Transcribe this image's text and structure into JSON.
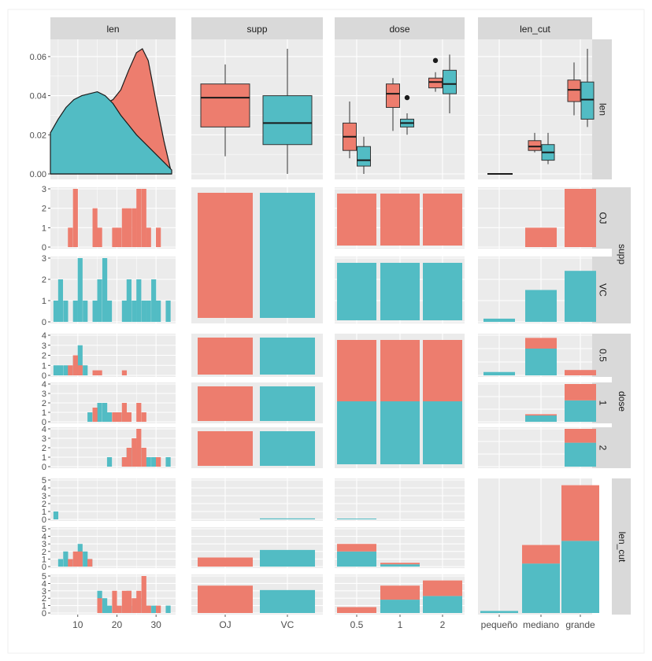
{
  "colors": {
    "oj": "#ED7D6E",
    "vc": "#52BCC4",
    "panel_bg": "#EBEBEB",
    "strip_bg": "#D9D9D9",
    "grid": "#FFFFFF",
    "tick_text": "#4D4D4D",
    "strip_text": "#1A1A1A",
    "outline": "#1A1A1A"
  },
  "chart_data": {
    "type": "pairs",
    "variables": [
      "len",
      "supp",
      "dose",
      "len_cut"
    ],
    "column_strips": [
      "len",
      "supp",
      "dose",
      "len_cut"
    ],
    "row_strips": [
      "len",
      "supp",
      "dose",
      "len_cut"
    ],
    "sub_strips": {
      "supp": [
        "OJ",
        "VC"
      ],
      "dose": [
        "0.5",
        "1",
        "2"
      ]
    },
    "axis_ticks": {
      "len_x": [
        "10",
        "20",
        "30"
      ],
      "supp_x": [
        "OJ",
        "VC"
      ],
      "dose_x": [
        "0.5",
        "1",
        "2"
      ],
      "len_cut_x": [
        "pequeño",
        "mediano",
        "grande"
      ],
      "density_y": [
        "0.00",
        "0.02",
        "0.04",
        "0.06"
      ],
      "count_y_small": [
        "0",
        "1",
        "2",
        "3"
      ],
      "count_y_dose": [
        "0",
        "1",
        "2",
        "3",
        "4"
      ],
      "count_y_len_cut": [
        "0",
        "1",
        "2",
        "3",
        "4",
        "5"
      ]
    },
    "len_range": [
      3,
      35
    ],
    "density": {
      "x": [
        3,
        5,
        7,
        9,
        11,
        13,
        15,
        17,
        19,
        21,
        23,
        25,
        26.5,
        28,
        30,
        32,
        34
      ],
      "OJ": [
        0.0,
        0.001,
        0.003,
        0.007,
        0.013,
        0.022,
        0.031,
        0.036,
        0.038,
        0.043,
        0.053,
        0.062,
        0.064,
        0.058,
        0.037,
        0.017,
        0.0
      ],
      "VC": [
        0.021,
        0.028,
        0.034,
        0.038,
        0.04,
        0.041,
        0.042,
        0.04,
        0.036,
        0.03,
        0.025,
        0.02,
        0.017,
        0.014,
        0.01,
        0.006,
        0.002
      ]
    },
    "len_by_supp_boxplot": {
      "ylim": [
        0,
        0.066
      ],
      "OJ": {
        "lower": 0.009,
        "q1": 0.024,
        "median": 0.039,
        "q3": 0.046,
        "upper": 0.056
      },
      "VC": {
        "lower": 0.0,
        "q1": 0.015,
        "median": 0.026,
        "q3": 0.04,
        "upper": 0.064
      }
    },
    "len_by_dose_boxplot": {
      "ylim": [
        0,
        0.066
      ],
      "groups": [
        "0.5",
        "1",
        "2"
      ],
      "OJ": [
        {
          "lower": 0.008,
          "q1": 0.012,
          "median": 0.019,
          "q3": 0.026,
          "upper": 0.037,
          "outliers": []
        },
        {
          "lower": 0.022,
          "q1": 0.034,
          "median": 0.041,
          "q3": 0.046,
          "upper": 0.049,
          "outliers": []
        },
        {
          "lower": 0.042,
          "q1": 0.044,
          "median": 0.047,
          "q3": 0.049,
          "upper": 0.052,
          "outliers": [
            0.058
          ]
        }
      ],
      "VC": [
        {
          "lower": 0.0,
          "q1": 0.004,
          "median": 0.007,
          "q3": 0.014,
          "upper": 0.019,
          "outliers": []
        },
        {
          "lower": 0.02,
          "q1": 0.024,
          "median": 0.026,
          "q3": 0.028,
          "upper": 0.031,
          "outliers": [
            0.039
          ]
        },
        {
          "lower": 0.031,
          "q1": 0.041,
          "median": 0.046,
          "q3": 0.053,
          "upper": 0.061,
          "outliers": []
        }
      ]
    },
    "len_by_len_cut_boxplot": {
      "ylim": [
        0,
        0.066
      ],
      "groups": [
        "pequeño",
        "mediano",
        "grande"
      ],
      "OJ": [
        {
          "lower": 0.0,
          "q1": 0.0,
          "median": 0.0,
          "q3": 0.0,
          "upper": 0.0
        },
        {
          "lower": 0.011,
          "q1": 0.012,
          "median": 0.014,
          "q3": 0.017,
          "upper": 0.021
        },
        {
          "lower": 0.03,
          "q1": 0.037,
          "median": 0.043,
          "q3": 0.048,
          "upper": 0.057
        }
      ],
      "VC": null,
      "VC_groups": [
        null,
        {
          "lower": 0.005,
          "q1": 0.007,
          "median": 0.011,
          "q3": 0.015,
          "upper": 0.021
        },
        {
          "lower": 0.024,
          "q1": 0.028,
          "median": 0.038,
          "q3": 0.047,
          "upper": 0.064
        }
      ]
    },
    "supp_by_supp_counts": {
      "OJ": 30,
      "VC": 30
    },
    "supp_by_dose_counts": {
      "OJ": [
        10,
        10,
        10
      ],
      "VC": [
        10,
        10,
        10
      ]
    },
    "dose_by_supp_counts": {
      "0.5": [
        10,
        10
      ],
      "1": [
        10,
        10
      ],
      "2": [
        10,
        10
      ]
    },
    "dose_by_dose_counts": {
      "0.5": [
        10,
        10
      ],
      "1": [
        10,
        10
      ],
      "2": [
        10,
        10
      ]
    },
    "len_cut_by_supp": {
      "ylim": [
        0,
        5
      ],
      "pequeño": {
        "OJ": 0,
        "VC": 0.12
      },
      "mediano": {
        "OJ": 1.2,
        "VC": 2.2
      },
      "grande": {
        "OJ": 3.7,
        "VC": 3.1
      }
    },
    "len_cut_by_dose": {
      "ylim": [
        0,
        5
      ],
      "0.5": {
        "OJ": [
          1,
          0
        ],
        "VC": [
          2.6,
          0
        ]
      },
      "1": {
        "OJ": [
          0.25,
          0
        ],
        "VC": [
          0.35,
          0
        ]
      },
      "2": {
        "OJ": [
          2.2,
          0
        ],
        "VC": [
          2.3,
          0
        ]
      },
      "stacked": {
        "0.5": {
          "OJ": 1.3,
          "VC": 2.6
        },
        "1": {
          "OJ": 2.1,
          "VC": 2.0
        },
        "2": {
          "OJ": 2.5,
          "VC": 2.5
        }
      },
      "pequeño_row": {
        "0.5": {
          "OJ": 0,
          "VC": 0.12
        },
        "1": {
          "OJ": 0,
          "VC": 0
        },
        "2": {
          "OJ": 0,
          "VC": 0
        }
      }
    },
    "supp_by_len_cut_hist": {
      "ylim": [
        0,
        3
      ],
      "OJ": [
        0,
        1,
        3
      ],
      "VC": [
        0.15,
        1.5,
        2.4
      ]
    },
    "dose_by_len_cut_hist": {
      "ylim": [
        0,
        3
      ],
      "0.5": {
        "OJ": [
          0,
          0.8,
          0.4
        ],
        "VC": [
          0.25,
          2.0,
          0
        ]
      },
      "1": {
        "OJ": [
          0,
          0.1,
          1.3
        ],
        "VC": [
          0,
          0.5,
          1.7
        ]
      },
      "2": {
        "OJ": [
          0,
          0,
          1.1
        ],
        "VC": [
          0,
          0,
          1.9
        ]
      }
    },
    "len_cut_by_len_cut": {
      "ylim": [
        0,
        5
      ],
      "pequeño": {
        "OJ": 0,
        "VC": 0.1
      },
      "mediano": {
        "OJ": 0.9,
        "VC": 2.4
      },
      "grande": {
        "OJ": 2.7,
        "VC": 3.5
      }
    },
    "len_cut_marginal_bars": {
      "pequeño": {
        "OJ": 0.0,
        "VC": 0.15
      },
      "mediano": {
        "OJ": 1.0,
        "VC": 1.8
      },
      "grande": {
        "OJ": 2.4,
        "VC": 1.9
      }
    },
    "histogram_len_by_supp": {
      "bin_width": 1.25,
      "OJ": {
        "bins": [
          8.1,
          9.4,
          14.4,
          15.6,
          19.4,
          20.6,
          21.9,
          23.1,
          24.4,
          25.6,
          26.9,
          28.1,
          30.6
        ],
        "counts": [
          1,
          3,
          2,
          1,
          1,
          1,
          2,
          2,
          2,
          3,
          3,
          1,
          1
        ]
      },
      "VC": {
        "bins": [
          4.4,
          5.6,
          6.9,
          9.4,
          10.6,
          11.9,
          14.4,
          15.6,
          16.9,
          18.1,
          21.9,
          23.1,
          24.4,
          25.6,
          26.9,
          28.1,
          29.4,
          30.6,
          33.1
        ],
        "counts": [
          1,
          2,
          1,
          1,
          3,
          1,
          1,
          2,
          3,
          1,
          1,
          2,
          1,
          2,
          1,
          1,
          2,
          1,
          1
        ]
      }
    },
    "histogram_len_by_dose": {
      "ylim": [
        0,
        4
      ],
      "0.5": {
        "OJ": {
          "bins": [
            8.1,
            9.4,
            10.6,
            14.4,
            15.6,
            21.9
          ],
          "counts": [
            1,
            2,
            1,
            0.5,
            0.5,
            0.5
          ]
        },
        "VC": {
          "bins": [
            4.4,
            5.6,
            6.9,
            9.4,
            10.6,
            11.9
          ],
          "counts": [
            1,
            1,
            1,
            2,
            3,
            1
          ]
        }
      },
      "1": {
        "OJ": {
          "bins": [
            14.4,
            19.4,
            20.6,
            21.9,
            23.1,
            25.6,
            26.9
          ],
          "counts": [
            1.5,
            1,
            1,
            2,
            1,
            2,
            1
          ]
        },
        "VC": {
          "bins": [
            13.1,
            15.6,
            16.9,
            18.1,
            21.9
          ],
          "counts": [
            1,
            2,
            2,
            1,
            1
          ]
        }
      },
      "2": {
        "OJ": {
          "bins": [
            21.9,
            23.1,
            24.4,
            25.6,
            26.9,
            30.6
          ],
          "counts": [
            1,
            2,
            3,
            4,
            2,
            1
          ]
        },
        "VC": {
          "bins": [
            18.1,
            21.9,
            23.1,
            24.4,
            25.6,
            28.1,
            29.4,
            33.1
          ],
          "counts": [
            1,
            1,
            2,
            2,
            2,
            1,
            1,
            1
          ]
        }
      }
    },
    "histogram_len_by_len_cut": {
      "ylim": [
        0,
        5
      ],
      "pequeño": {
        "OJ": {
          "bins": [],
          "counts": []
        },
        "VC": {
          "bins": [
            4.4
          ],
          "counts": [
            1
          ]
        }
      },
      "mediano": {
        "OJ": {
          "bins": [
            8.1,
            9.4,
            10.6,
            13.1
          ],
          "counts": [
            1,
            2,
            2,
            1
          ]
        },
        "VC": {
          "bins": [
            5.6,
            6.9,
            9.4,
            10.6,
            11.9,
            13.1
          ],
          "counts": [
            1,
            2,
            1,
            3,
            2,
            1
          ]
        }
      },
      "grande": {
        "OJ": {
          "bins": [
            15.6,
            19.4,
            20.6,
            21.9,
            23.1,
            24.4,
            25.6,
            26.9,
            28.1,
            30.6
          ],
          "counts": [
            2,
            3,
            1,
            3,
            3,
            2,
            3,
            5,
            1,
            1
          ]
        },
        "VC": {
          "bins": [
            15.6,
            16.9,
            18.1,
            21.9,
            23.1,
            24.4,
            25.6,
            28.1,
            29.4,
            33.1
          ],
          "counts": [
            3,
            2,
            1,
            1,
            3,
            1,
            2,
            1,
            1,
            1
          ]
        }
      }
    }
  }
}
